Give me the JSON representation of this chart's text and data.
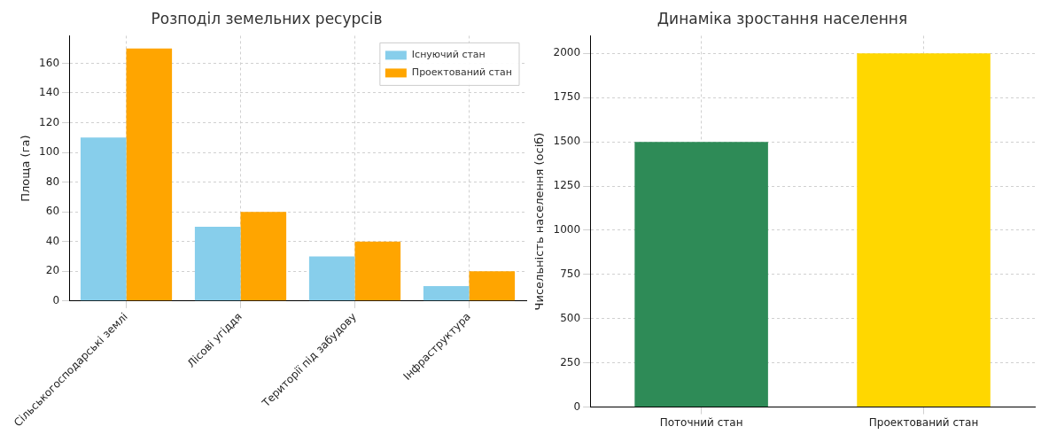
{
  "chart_data": [
    {
      "type": "bar",
      "title": "Розподіл земельних ресурсів",
      "ylabel": "Площа (га)",
      "categories": [
        "Сільськогосподарські землі",
        "Лісові угіддя",
        "Території під забудову",
        "Інфраструктура"
      ],
      "series": [
        {
          "name": "Існуючий стан",
          "color": "#87ceeb",
          "values": [
            110,
            50,
            30,
            10
          ]
        },
        {
          "name": "Проектований стан",
          "color": "#ffa500",
          "values": [
            170,
            60,
            40,
            20
          ]
        }
      ],
      "ylim": [
        0,
        178.5
      ],
      "yticks": [
        0,
        20,
        40,
        60,
        80,
        100,
        120,
        140,
        160
      ],
      "grid": true,
      "legend": "top right"
    },
    {
      "type": "bar",
      "title": "Динаміка зростання населення",
      "ylabel": "Чисельність населення (осіб)",
      "categories": [
        "Поточний стан",
        "Проектований стан"
      ],
      "values": [
        1500,
        2000
      ],
      "colors": [
        "#2e8b57",
        "#ffd700"
      ],
      "ylim": [
        0,
        2100
      ],
      "yticks": [
        0,
        250,
        500,
        750,
        1000,
        1250,
        1500,
        1750,
        2000
      ],
      "grid": true
    }
  ]
}
